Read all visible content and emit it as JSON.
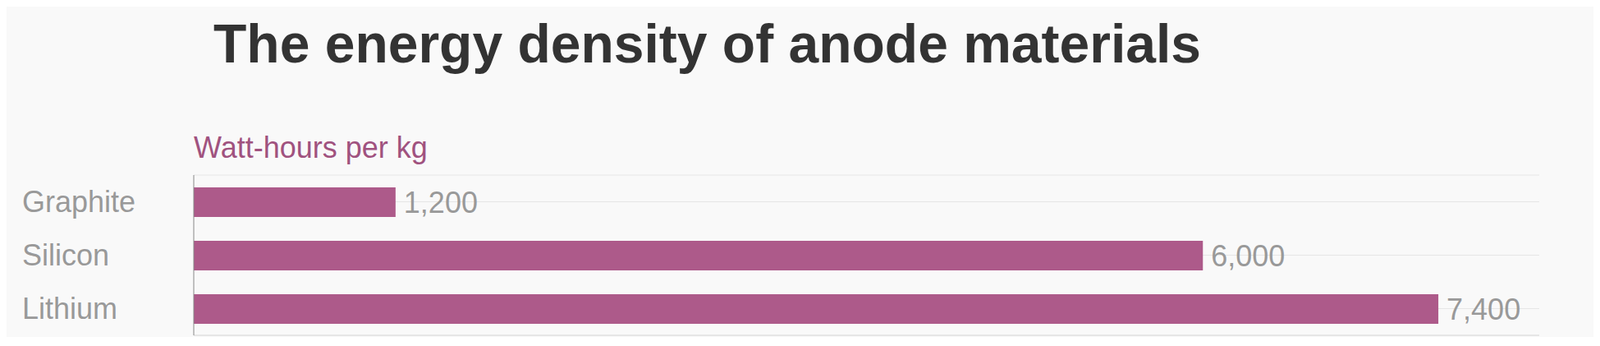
{
  "chart_data": {
    "type": "bar",
    "title": "The energy density of anode materials",
    "subtitle": "Watt-hours per kg",
    "orientation": "horizontal",
    "categories": [
      "Graphite",
      "Silicon",
      "Lithium"
    ],
    "values": [
      1200,
      6000,
      7400
    ],
    "value_labels": [
      "1,200",
      "6,000",
      "7,400"
    ],
    "color": "#ad5a8a",
    "xlim": [
      0,
      8000
    ],
    "grid": true,
    "data_labels": true,
    "tick_labels": "y"
  }
}
